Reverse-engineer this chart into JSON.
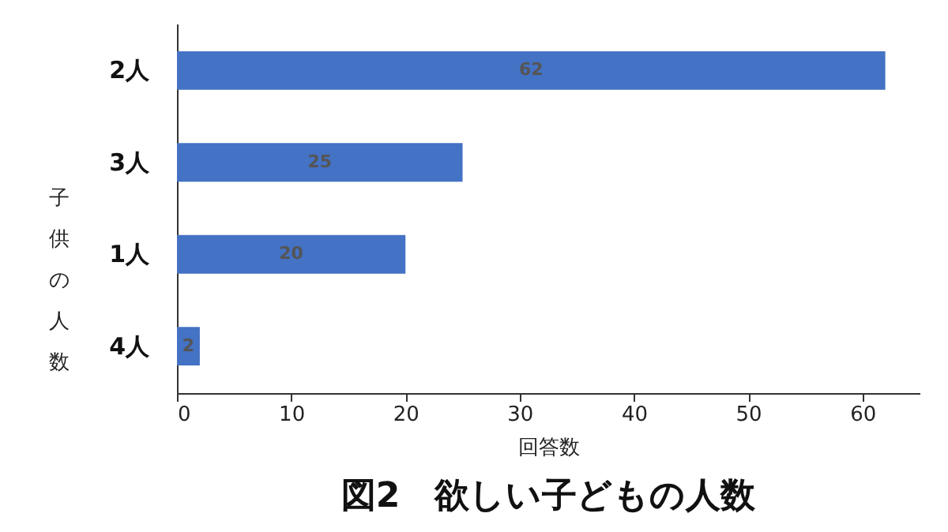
{
  "chart_data": {
    "type": "bar",
    "orientation": "horizontal",
    "title": "図2　欲しい子どもの人数",
    "xlabel": "回答数",
    "ylabel": "子供の人数",
    "categories": [
      "2人",
      "3人",
      "1人",
      "4人"
    ],
    "values": [
      62,
      25,
      20,
      2
    ],
    "color": "#4472c4",
    "xlim": [
      0,
      65
    ],
    "xticks": [
      0,
      10,
      20,
      30,
      40,
      50,
      60
    ],
    "grid": false,
    "data_labels": true
  }
}
